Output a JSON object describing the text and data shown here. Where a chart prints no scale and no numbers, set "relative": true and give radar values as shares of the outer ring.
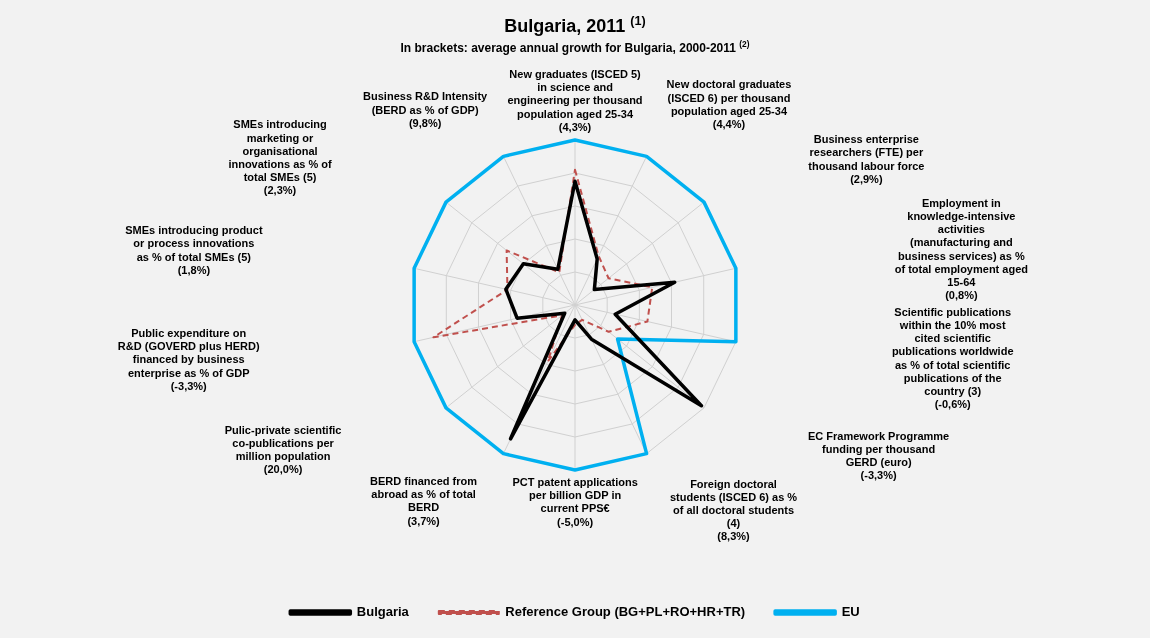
{
  "chart_data": {
    "type": "radar",
    "title": "Bulgaria, 2011 $^{(1)}$",
    "subtitle": "In brackets: average annual growth for Bulgaria, 2000-2011 $^{(2)}$",
    "relative": true,
    "grid": true,
    "legend": "bottom",
    "marker": "none",
    "categories": [
      "New graduates (ISCED 5) in science and engineering per thousand population aged 25-34 (4,3%)",
      "New doctoral graduates (ISCED 6) per thousand population aged 25-34 (4,4%)",
      "Business enterprise researchers (FTE) per thousand labour force (2,9%)",
      "Employment in knowledge-intensive activities (manufacturing and business services) as % of total employment aged 15-64 (0,8%)",
      "Scientific publications within the 10% most cited scientific publications worldwide as % of total scientific publications of the country (3) (-0,6%)",
      "EC Framework Programme funding per thousand GERD (euro) (-3,3%)",
      "Foreign doctoral students (ISCED 6) as % of all doctoral students (4) (8,3%)",
      "PCT patent applications per billion GDP in current PPS€ (-5,0%)",
      "BERD financed from abroad as % of total BERD (3,7%)",
      "Pulic-private scientific co-publications per million population (20,0%)",
      "Public expenditure on R&D (GOVERD plus HERD) financed by business enterprise as % of GDP (-3,3%)",
      "SMEs introducing product or process innovations as % of total SMEs (5) (1,8%)",
      "SMEs introducing marketing or organisational innovations as % of total SMEs (5) (2,3%)",
      "Business R&D Intensity (BERD as % of GDP) (9,8%)"
    ],
    "series": [
      {
        "name": "Bulgaria",
        "color": "#000000",
        "line_style": "solid",
        "values": [
          0.75,
          0.31,
          0.15,
          0.62,
          0.25,
          0.98,
          0.23,
          0.09,
          0.9,
          0.08,
          0.36,
          0.43,
          0.4,
          0.24
        ]
      },
      {
        "name": "Reference Group (BG+PL+RO+HR+TR)",
        "color": "#c0504d",
        "line_style": "dashed",
        "values": [
          0.82,
          0.33,
          0.26,
          0.48,
          0.45,
          0.26,
          0.1,
          0.12,
          0.38,
          0.1,
          0.88,
          0.42,
          0.53,
          0.22
        ]
      },
      {
        "name": "EU",
        "color": "#00b0f0",
        "line_style": "solid",
        "values": [
          1,
          1,
          1,
          1,
          1,
          0.33,
          1,
          1,
          1,
          1,
          1,
          1,
          1,
          1
        ]
      }
    ]
  }
}
